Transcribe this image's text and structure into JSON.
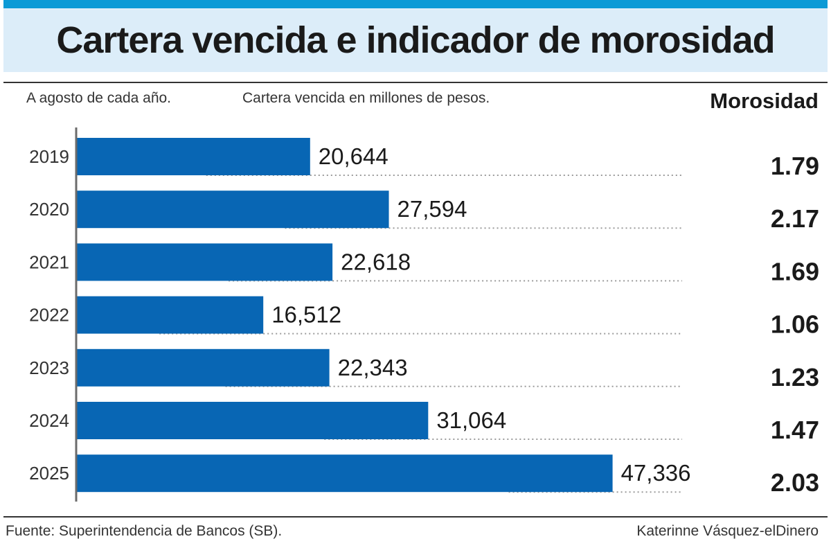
{
  "title": "Cartera vencida e indicador de morosidad",
  "header_note": "A agosto de cada año.",
  "morosidad_header": "Morosidad",
  "source": "Fuente: Superintendencia de Bancos (SB).",
  "author": "Katerinne Vásquez-elDinero",
  "colors": {
    "bar": "#0866b4",
    "accent": "#0b9ad6",
    "title_band": "#dcedf9",
    "text": "#1a1a1a"
  },
  "chart_data": {
    "type": "bar",
    "orientation": "horizontal",
    "title": "Cartera vencida e indicador de morosidad",
    "subtitle": "Cartera vencida en millones de pesos.",
    "categories": [
      "2019",
      "2020",
      "2021",
      "2022",
      "2023",
      "2024",
      "2025"
    ],
    "series": [
      {
        "name": "Cartera vencida",
        "values": [
          20644,
          27594,
          22618,
          16512,
          22343,
          31064,
          47336
        ],
        "labels": [
          "20,644",
          "27,594",
          "22,618",
          "16,512",
          "22,343",
          "31,064",
          "47,336"
        ]
      },
      {
        "name": "Morosidad",
        "values": [
          1.79,
          2.17,
          1.69,
          1.06,
          1.23,
          1.47,
          2.03
        ],
        "labels": [
          "1.79",
          "2.17",
          "1.69",
          "1.06",
          "1.23",
          "1.47",
          "2.03"
        ]
      }
    ],
    "xlim": [
      0,
      55000
    ],
    "grid": false,
    "legend": "none"
  }
}
